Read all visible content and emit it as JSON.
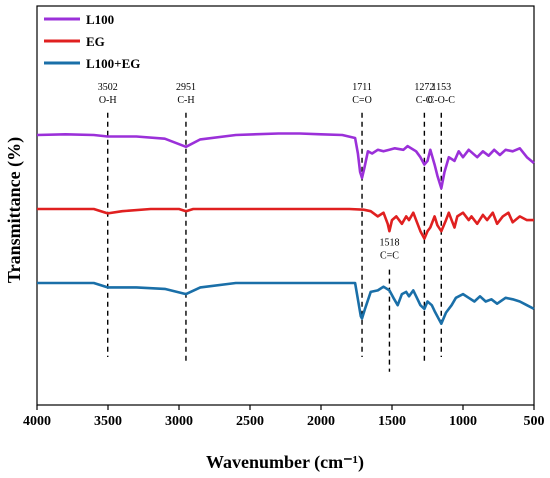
{
  "chart_data": {
    "type": "line",
    "xlabel": "Wavenumber (cm⁻¹)",
    "ylabel": "Transmittance (%)",
    "xlim": [
      4000,
      500
    ],
    "x_reversed": true,
    "x_ticks": [
      "4000",
      "3500",
      "3000",
      "2500",
      "2000",
      "1500",
      "1000",
      "500"
    ],
    "y_tick_labels_shown": false,
    "legend_position": "top-left",
    "series": [
      {
        "name": "L100",
        "color": "#9b30d9",
        "offset": 2.0,
        "points": [
          [
            4000,
            0
          ],
          [
            3800,
            0.01
          ],
          [
            3600,
            0.0
          ],
          [
            3502,
            -0.02
          ],
          [
            3300,
            -0.02
          ],
          [
            3100,
            -0.05
          ],
          [
            2951,
            -0.16
          ],
          [
            2850,
            -0.06
          ],
          [
            2600,
            0.0
          ],
          [
            2300,
            0.02
          ],
          [
            2150,
            0.02
          ],
          [
            2000,
            0.01
          ],
          [
            1850,
            0.0
          ],
          [
            1760,
            -0.04
          ],
          [
            1740,
            -0.25
          ],
          [
            1725,
            -0.5
          ],
          [
            1711,
            -0.58
          ],
          [
            1695,
            -0.45
          ],
          [
            1670,
            -0.22
          ],
          [
            1640,
            -0.25
          ],
          [
            1600,
            -0.2
          ],
          [
            1560,
            -0.22
          ],
          [
            1518,
            -0.2
          ],
          [
            1480,
            -0.18
          ],
          [
            1420,
            -0.2
          ],
          [
            1390,
            -0.15
          ],
          [
            1330,
            -0.22
          ],
          [
            1300,
            -0.3
          ],
          [
            1272,
            -0.4
          ],
          [
            1250,
            -0.35
          ],
          [
            1230,
            -0.2
          ],
          [
            1200,
            -0.4
          ],
          [
            1180,
            -0.55
          ],
          [
            1153,
            -0.72
          ],
          [
            1130,
            -0.5
          ],
          [
            1100,
            -0.3
          ],
          [
            1060,
            -0.35
          ],
          [
            1030,
            -0.22
          ],
          [
            1000,
            -0.3
          ],
          [
            960,
            -0.2
          ],
          [
            900,
            -0.3
          ],
          [
            860,
            -0.22
          ],
          [
            820,
            -0.28
          ],
          [
            780,
            -0.2
          ],
          [
            740,
            -0.27
          ],
          [
            700,
            -0.2
          ],
          [
            650,
            -0.22
          ],
          [
            600,
            -0.18
          ],
          [
            550,
            -0.3
          ],
          [
            500,
            -0.38
          ]
        ]
      },
      {
        "name": "EG",
        "color": "#e02020",
        "offset": 1.0,
        "points": [
          [
            4000,
            0
          ],
          [
            3800,
            0.0
          ],
          [
            3600,
            0.0
          ],
          [
            3502,
            -0.06
          ],
          [
            3400,
            -0.03
          ],
          [
            3200,
            0.0
          ],
          [
            3000,
            0.0
          ],
          [
            2951,
            -0.03
          ],
          [
            2900,
            0.0
          ],
          [
            2500,
            0.0
          ],
          [
            2000,
            0.0
          ],
          [
            1800,
            0.0
          ],
          [
            1700,
            -0.01
          ],
          [
            1650,
            -0.03
          ],
          [
            1600,
            -0.1
          ],
          [
            1560,
            -0.05
          ],
          [
            1530,
            -0.2
          ],
          [
            1518,
            -0.3
          ],
          [
            1500,
            -0.15
          ],
          [
            1470,
            -0.1
          ],
          [
            1430,
            -0.2
          ],
          [
            1400,
            -0.1
          ],
          [
            1380,
            -0.15
          ],
          [
            1350,
            -0.05
          ],
          [
            1330,
            -0.15
          ],
          [
            1300,
            -0.3
          ],
          [
            1272,
            -0.4
          ],
          [
            1250,
            -0.3
          ],
          [
            1230,
            -0.25
          ],
          [
            1200,
            -0.1
          ],
          [
            1180,
            -0.22
          ],
          [
            1153,
            -0.3
          ],
          [
            1120,
            -0.15
          ],
          [
            1100,
            -0.05
          ],
          [
            1080,
            -0.15
          ],
          [
            1060,
            -0.25
          ],
          [
            1040,
            -0.1
          ],
          [
            1000,
            -0.05
          ],
          [
            960,
            -0.15
          ],
          [
            940,
            -0.1
          ],
          [
            900,
            -0.2
          ],
          [
            860,
            -0.08
          ],
          [
            830,
            -0.15
          ],
          [
            790,
            -0.05
          ],
          [
            760,
            -0.2
          ],
          [
            720,
            -0.1
          ],
          [
            680,
            -0.05
          ],
          [
            650,
            -0.18
          ],
          [
            600,
            -0.1
          ],
          [
            550,
            -0.15
          ],
          [
            500,
            -0.15
          ]
        ]
      },
      {
        "name": "L100+EG",
        "color": "#1a6fa8",
        "offset": 0.0,
        "points": [
          [
            4000,
            0
          ],
          [
            3800,
            0.0
          ],
          [
            3600,
            0.0
          ],
          [
            3502,
            -0.06
          ],
          [
            3300,
            -0.06
          ],
          [
            3100,
            -0.08
          ],
          [
            2951,
            -0.15
          ],
          [
            2850,
            -0.06
          ],
          [
            2600,
            0.0
          ],
          [
            2300,
            0.0
          ],
          [
            2000,
            0.0
          ],
          [
            1800,
            0.0
          ],
          [
            1760,
            0.0
          ],
          [
            1740,
            -0.22
          ],
          [
            1720,
            -0.45
          ],
          [
            1711,
            -0.48
          ],
          [
            1690,
            -0.35
          ],
          [
            1650,
            -0.12
          ],
          [
            1600,
            -0.1
          ],
          [
            1560,
            -0.05
          ],
          [
            1518,
            -0.1
          ],
          [
            1490,
            -0.2
          ],
          [
            1460,
            -0.3
          ],
          [
            1430,
            -0.15
          ],
          [
            1400,
            -0.12
          ],
          [
            1380,
            -0.18
          ],
          [
            1350,
            -0.1
          ],
          [
            1320,
            -0.22
          ],
          [
            1300,
            -0.3
          ],
          [
            1272,
            -0.35
          ],
          [
            1250,
            -0.25
          ],
          [
            1220,
            -0.3
          ],
          [
            1200,
            -0.38
          ],
          [
            1153,
            -0.55
          ],
          [
            1120,
            -0.4
          ],
          [
            1080,
            -0.3
          ],
          [
            1050,
            -0.2
          ],
          [
            1000,
            -0.15
          ],
          [
            960,
            -0.2
          ],
          [
            920,
            -0.25
          ],
          [
            880,
            -0.18
          ],
          [
            840,
            -0.25
          ],
          [
            800,
            -0.22
          ],
          [
            760,
            -0.28
          ],
          [
            700,
            -0.2
          ],
          [
            650,
            -0.22
          ],
          [
            600,
            -0.25
          ],
          [
            550,
            -0.3
          ],
          [
            500,
            -0.35
          ]
        ]
      }
    ],
    "annotations": [
      {
        "wn": 3502,
        "value": "3502",
        "group": "O-H"
      },
      {
        "wn": 2951,
        "value": "2951",
        "group": "C-H"
      },
      {
        "wn": 1711,
        "value": "1711",
        "group": "C=O"
      },
      {
        "wn": 1272,
        "value": "1272",
        "group": "C-O"
      },
      {
        "wn": 1153,
        "value": "1153",
        "group": "C-O-C"
      },
      {
        "wn": 1518,
        "value": "1518",
        "group": "C=C"
      }
    ]
  }
}
